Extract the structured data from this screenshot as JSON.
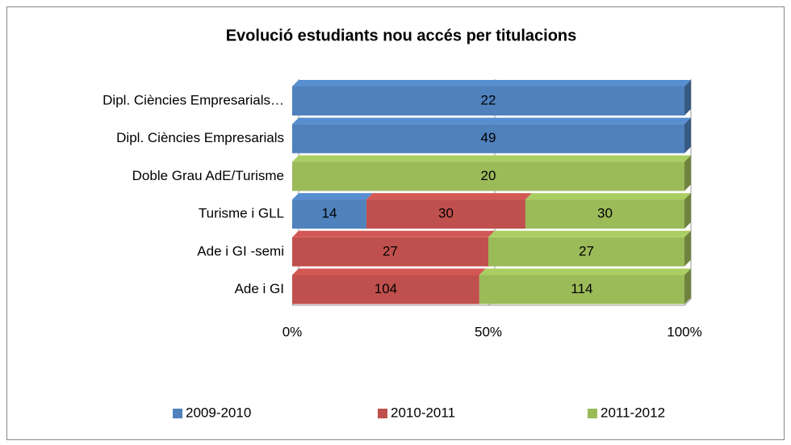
{
  "chart_data": {
    "type": "bar",
    "orientation": "horizontal",
    "stacked": "percent",
    "title": "Evolució estudiants nou accés per titulacions",
    "categories": [
      "Dipl. Ciències Empresarials…",
      "Dipl. Ciències Empresarials",
      "Doble Grau AdE/Turisme",
      "Turisme i GLL",
      "Ade i GI -semi",
      "Ade i GI"
    ],
    "series": [
      {
        "name": "2009-2010",
        "color": "#4f81bd",
        "values": [
          22,
          49,
          null,
          14,
          null,
          null
        ]
      },
      {
        "name": "2010-2011",
        "color": "#c0504d",
        "values": [
          null,
          null,
          null,
          30,
          27,
          104
        ]
      },
      {
        "name": "2011-2012",
        "color": "#9bbb59",
        "values": [
          null,
          null,
          20,
          30,
          27,
          114
        ]
      }
    ],
    "xlim": [
      0,
      100
    ],
    "xticks": [
      {
        "value": 0,
        "label": "0%"
      },
      {
        "value": 50,
        "label": "50%"
      },
      {
        "value": 100,
        "label": "100%"
      }
    ],
    "grid": true,
    "legend": "bottom"
  }
}
